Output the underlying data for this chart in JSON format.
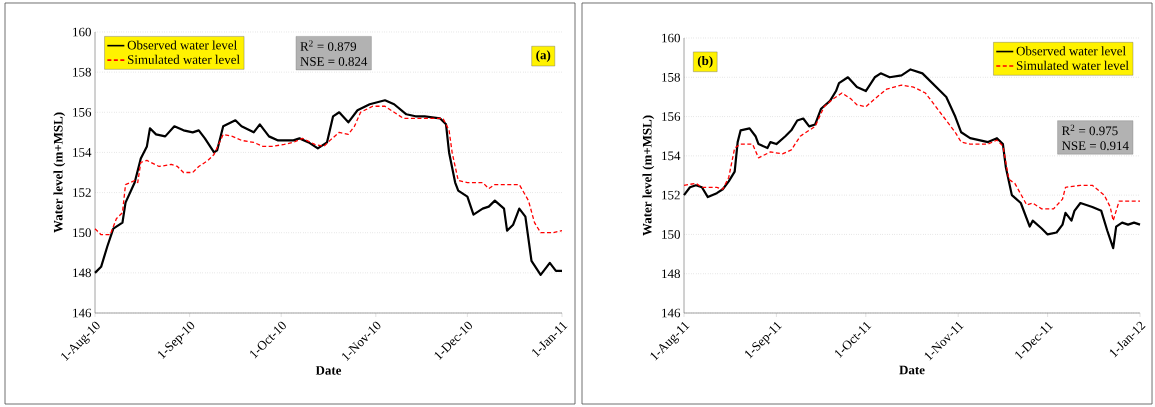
{
  "chart_data": [
    {
      "type": "line",
      "xlabel": "Date",
      "ylabel": "Water level (m+MSL)",
      "xlim": [
        "2010-08-01",
        "2011-01-01"
      ],
      "xticks": [
        {
          "value": "2010-08-01",
          "label": "1-Aug-10"
        },
        {
          "value": "2010-09-01",
          "label": "1-Sep-10"
        },
        {
          "value": "2010-10-01",
          "label": "1-Oct-10"
        },
        {
          "value": "2010-11-01",
          "label": "1-Nov-10"
        },
        {
          "value": "2010-12-01",
          "label": "1-Dec-10"
        },
        {
          "value": "2011-01-01",
          "label": "1-Jan-11"
        }
      ],
      "ylim": [
        146,
        160
      ],
      "yticks": [
        146,
        148,
        150,
        152,
        154,
        156,
        158,
        160
      ],
      "grid": "y",
      "legend": "top left",
      "annotations": [
        "(a)",
        "R$^{2}$   = 0.879",
        "NSE = 0.824"
      ],
      "series": [
        {
          "name": "Observed water level",
          "color": "#000000",
          "line_style": "solid",
          "x": [
            "2010-08-01",
            "2010-08-03",
            "2010-08-05",
            "2010-08-07",
            "2010-08-10",
            "2010-08-11",
            "2010-08-14",
            "2010-08-16",
            "2010-08-18",
            "2010-08-19",
            "2010-08-21",
            "2010-08-24",
            "2010-08-27",
            "2010-08-30",
            "2010-09-02",
            "2010-09-04",
            "2010-09-06",
            "2010-09-09",
            "2010-09-10",
            "2010-09-12",
            "2010-09-16",
            "2010-09-18",
            "2010-09-22",
            "2010-09-24",
            "2010-09-27",
            "2010-09-30",
            "2010-10-05",
            "2010-10-07",
            "2010-10-10",
            "2010-10-13",
            "2010-10-16",
            "2010-10-18",
            "2010-10-20",
            "2010-10-23",
            "2010-10-26",
            "2010-10-30",
            "2010-11-04",
            "2010-11-07",
            "2010-11-11",
            "2010-11-14",
            "2010-11-17",
            "2010-11-22",
            "2010-11-24",
            "2010-11-25",
            "2010-11-27",
            "2010-11-28",
            "2010-12-01",
            "2010-12-03",
            "2010-12-06",
            "2010-12-08",
            "2010-12-10",
            "2010-12-13",
            "2010-12-14",
            "2010-12-16",
            "2010-12-18",
            "2010-12-20",
            "2010-12-22",
            "2010-12-25",
            "2010-12-28",
            "2010-12-30",
            "2011-01-01"
          ],
          "values": [
            148.0,
            148.3,
            149.3,
            150.2,
            150.5,
            151.5,
            152.5,
            153.7,
            154.3,
            155.2,
            154.9,
            154.8,
            155.3,
            155.1,
            155.0,
            155.1,
            154.7,
            154.0,
            154.1,
            155.3,
            155.6,
            155.3,
            155.0,
            155.4,
            154.8,
            154.6,
            154.6,
            154.7,
            154.5,
            154.2,
            154.5,
            155.8,
            156.0,
            155.5,
            156.1,
            156.4,
            156.6,
            156.4,
            155.9,
            155.8,
            155.8,
            155.7,
            155.4,
            154.0,
            152.5,
            152.1,
            151.8,
            150.9,
            151.2,
            151.3,
            151.6,
            151.2,
            150.1,
            150.4,
            151.2,
            150.8,
            148.6,
            147.9,
            148.5,
            148.1,
            148.1
          ]
        },
        {
          "name": "Simulated water level",
          "color": "#ff0000",
          "line_style": "dashed",
          "x": [
            "2010-08-01",
            "2010-08-03",
            "2010-08-06",
            "2010-08-08",
            "2010-08-10",
            "2010-08-11",
            "2010-08-14",
            "2010-08-15",
            "2010-08-16",
            "2010-08-18",
            "2010-08-22",
            "2010-08-26",
            "2010-08-28",
            "2010-08-30",
            "2010-09-02",
            "2010-09-04",
            "2010-09-07",
            "2010-09-09",
            "2010-09-12",
            "2010-09-15",
            "2010-09-18",
            "2010-09-22",
            "2010-09-25",
            "2010-09-28",
            "2010-10-02",
            "2010-10-05",
            "2010-10-08",
            "2010-10-12",
            "2010-10-15",
            "2010-10-17",
            "2010-10-20",
            "2010-10-23",
            "2010-10-25",
            "2010-10-27",
            "2010-10-31",
            "2010-11-04",
            "2010-11-07",
            "2010-11-10",
            "2010-11-13",
            "2010-11-18",
            "2010-11-23",
            "2010-11-25",
            "2010-11-26",
            "2010-11-28",
            "2010-12-01",
            "2010-12-06",
            "2010-12-08",
            "2010-12-10",
            "2010-12-16",
            "2010-12-18",
            "2010-12-21",
            "2010-12-23",
            "2010-12-25",
            "2010-12-29",
            "2011-01-01"
          ],
          "values": [
            150.2,
            149.9,
            149.9,
            150.7,
            151.0,
            152.4,
            152.6,
            152.5,
            153.5,
            153.6,
            153.3,
            153.4,
            153.3,
            153.0,
            153.0,
            153.3,
            153.6,
            153.9,
            154.9,
            154.8,
            154.6,
            154.5,
            154.3,
            154.3,
            154.4,
            154.5,
            154.7,
            154.4,
            154.3,
            154.6,
            155.0,
            154.9,
            155.3,
            156.0,
            156.3,
            156.3,
            156.0,
            155.7,
            155.7,
            155.7,
            155.7,
            155.1,
            154.0,
            152.6,
            152.5,
            152.5,
            152.2,
            152.4,
            152.4,
            152.4,
            151.6,
            150.5,
            150.0,
            150.0,
            150.1
          ]
        }
      ]
    },
    {
      "type": "line",
      "xlabel": "Date",
      "ylabel": "Water level (m+MSL)",
      "xlim": [
        "2011-08-01",
        "2012-01-01"
      ],
      "xticks": [
        {
          "value": "2011-08-01",
          "label": "1-Aug-11"
        },
        {
          "value": "2011-09-01",
          "label": "1-Sep-11"
        },
        {
          "value": "2011-10-01",
          "label": "1-Oct-11"
        },
        {
          "value": "2011-11-01",
          "label": "1-Nov-11"
        },
        {
          "value": "2011-12-01",
          "label": "1-Dec-11"
        },
        {
          "value": "2012-01-01",
          "label": "1-Jan-12"
        }
      ],
      "ylim": [
        146,
        160
      ],
      "yticks": [
        146,
        148,
        150,
        152,
        154,
        156,
        158,
        160
      ],
      "grid": "y",
      "legend": "top right",
      "annotations": [
        "(b)",
        "R$^{2}$   = 0.975",
        "NSE = 0.914"
      ],
      "series": [
        {
          "name": "Observed water level",
          "color": "#000000",
          "line_style": "solid",
          "x": [
            "2011-08-01",
            "2011-08-03",
            "2011-08-05",
            "2011-08-07",
            "2011-08-09",
            "2011-08-12",
            "2011-08-14",
            "2011-08-16",
            "2011-08-18",
            "2011-08-19",
            "2011-08-20",
            "2011-08-23",
            "2011-08-25",
            "2011-08-26",
            "2011-08-29",
            "2011-08-30",
            "2011-09-01",
            "2011-09-04",
            "2011-09-06",
            "2011-09-08",
            "2011-09-10",
            "2011-09-12",
            "2011-09-14",
            "2011-09-16",
            "2011-09-19",
            "2011-09-21",
            "2011-09-22",
            "2011-09-25",
            "2011-09-28",
            "2011-10-01",
            "2011-10-04",
            "2011-10-06",
            "2011-10-09",
            "2011-10-13",
            "2011-10-16",
            "2011-10-20",
            "2011-10-24",
            "2011-10-28",
            "2011-10-31",
            "2011-11-02",
            "2011-11-05",
            "2011-11-08",
            "2011-11-11",
            "2011-11-14",
            "2011-11-16",
            "2011-11-17",
            "2011-11-19",
            "2011-11-22",
            "2011-11-25",
            "2011-11-26",
            "2011-11-29",
            "2011-12-01",
            "2011-12-04",
            "2011-12-06",
            "2011-12-07",
            "2011-12-09",
            "2011-12-10",
            "2011-12-12",
            "2011-12-14",
            "2011-12-16",
            "2011-12-19",
            "2011-12-21",
            "2011-12-23",
            "2011-12-24",
            "2011-12-26",
            "2011-12-28",
            "2011-12-30",
            "2012-01-01"
          ],
          "values": [
            152.0,
            152.4,
            152.5,
            152.4,
            151.9,
            152.1,
            152.3,
            152.7,
            153.2,
            154.7,
            155.3,
            155.4,
            155.0,
            154.6,
            154.4,
            154.7,
            154.6,
            155.0,
            155.3,
            155.8,
            155.9,
            155.5,
            155.6,
            156.4,
            156.8,
            157.3,
            157.7,
            158.0,
            157.5,
            157.3,
            158.0,
            158.2,
            158.0,
            158.1,
            158.4,
            158.2,
            157.6,
            157.0,
            156.0,
            155.2,
            154.9,
            154.8,
            154.7,
            154.9,
            154.6,
            153.4,
            152.0,
            151.6,
            150.4,
            150.7,
            150.3,
            150.0,
            150.1,
            150.5,
            151.1,
            150.7,
            151.2,
            151.6,
            151.5,
            151.4,
            151.2,
            150.2,
            149.3,
            150.4,
            150.6,
            150.5,
            150.6,
            150.5
          ]
        },
        {
          "name": "Simulated water level",
          "color": "#ff0000",
          "line_style": "dashed",
          "x": [
            "2011-08-01",
            "2011-08-05",
            "2011-08-07",
            "2011-08-12",
            "2011-08-14",
            "2011-08-16",
            "2011-08-18",
            "2011-08-20",
            "2011-08-24",
            "2011-08-26",
            "2011-08-30",
            "2011-09-03",
            "2011-09-06",
            "2011-09-09",
            "2011-09-14",
            "2011-09-17",
            "2011-09-20",
            "2011-09-23",
            "2011-09-26",
            "2011-09-28",
            "2011-10-01",
            "2011-10-04",
            "2011-10-08",
            "2011-10-13",
            "2011-10-17",
            "2011-10-21",
            "2011-10-24",
            "2011-10-27",
            "2011-10-31",
            "2011-11-02",
            "2011-11-05",
            "2011-11-11",
            "2011-11-14",
            "2011-11-16",
            "2011-11-18",
            "2011-11-20",
            "2011-11-24",
            "2011-11-26",
            "2011-11-29",
            "2011-12-03",
            "2011-12-06",
            "2011-12-07",
            "2011-12-12",
            "2011-12-16",
            "2011-12-20",
            "2011-12-22",
            "2011-12-23",
            "2011-12-25",
            "2011-12-29",
            "2012-01-01"
          ],
          "values": [
            152.5,
            152.6,
            152.4,
            152.4,
            152.3,
            152.9,
            154.4,
            154.6,
            154.6,
            153.9,
            154.2,
            154.1,
            154.3,
            155.0,
            155.5,
            156.5,
            156.9,
            157.2,
            156.9,
            156.6,
            156.5,
            156.9,
            157.4,
            157.6,
            157.5,
            157.2,
            156.6,
            156.0,
            155.2,
            154.7,
            154.6,
            154.6,
            154.8,
            154.5,
            152.8,
            152.6,
            151.5,
            151.6,
            151.3,
            151.3,
            151.8,
            152.4,
            152.5,
            152.5,
            152.0,
            151.4,
            150.7,
            151.7,
            151.7,
            151.7
          ]
        }
      ]
    }
  ]
}
